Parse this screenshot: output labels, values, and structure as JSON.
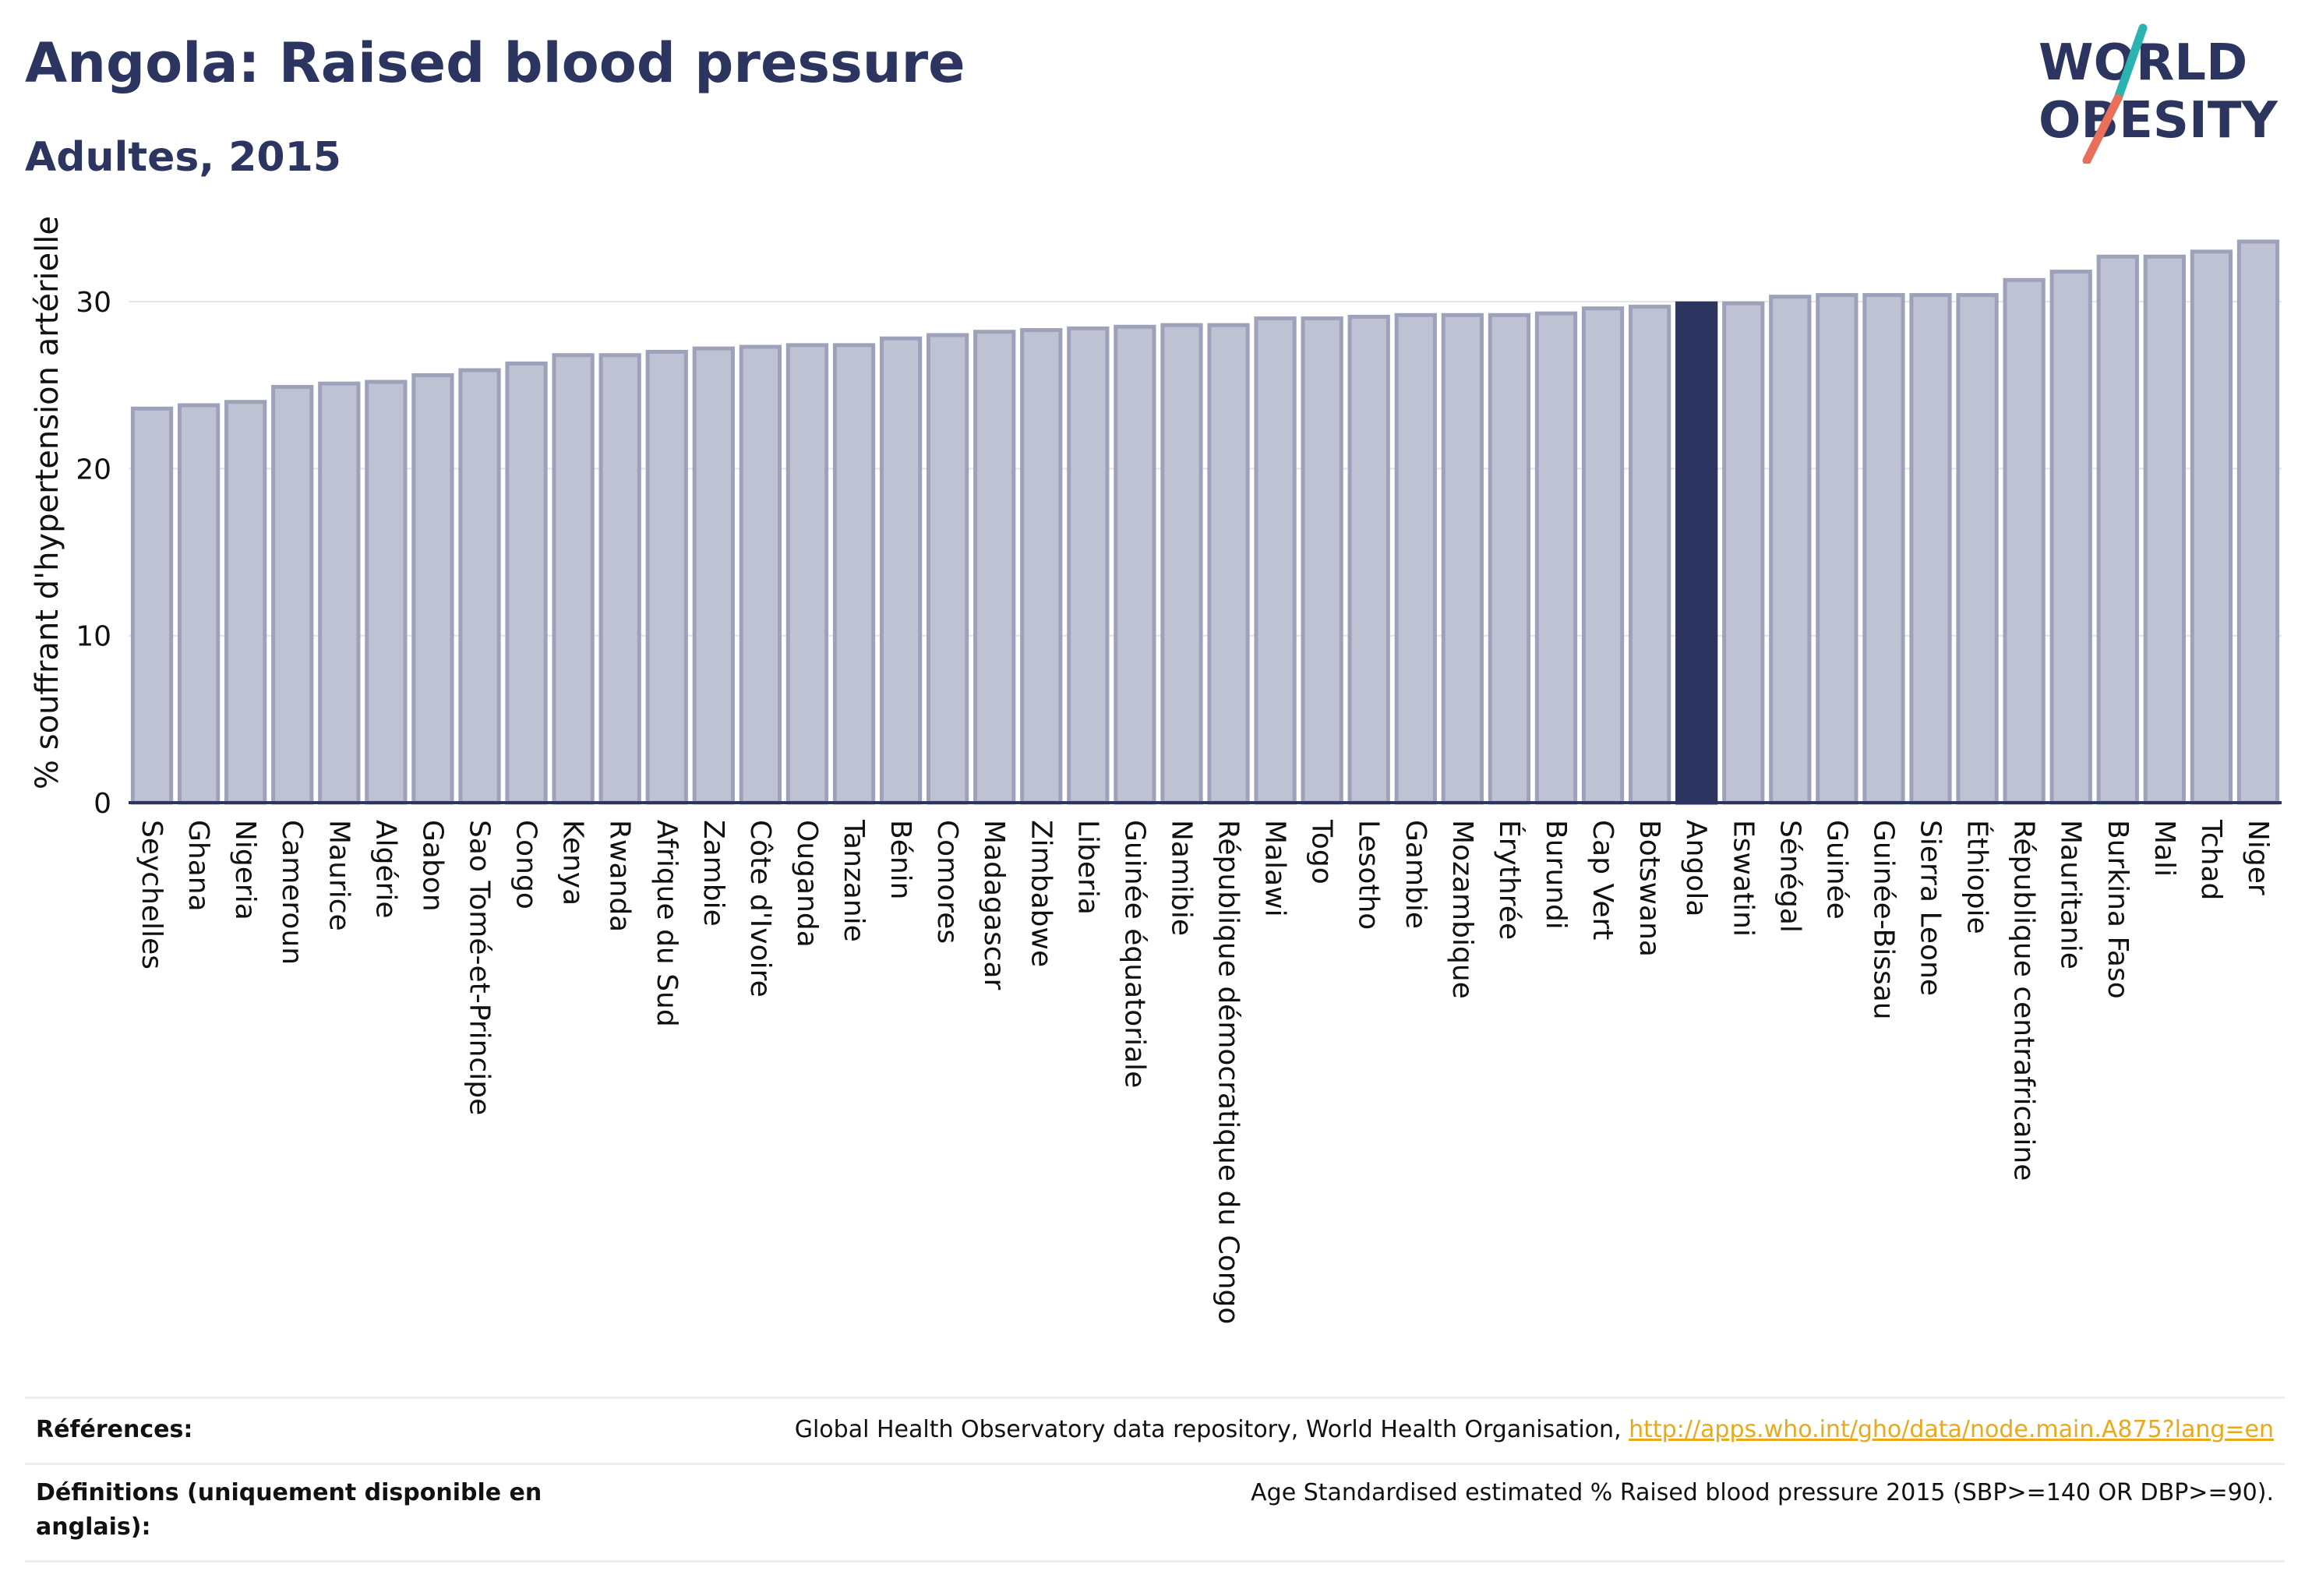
{
  "header": {
    "title": "Angola: Raised blood pressure",
    "subtitle": "Adultes, 2015"
  },
  "logo": {
    "line1": "WORLD",
    "line2": "OBESITY",
    "slash_colors": [
      "#2bb3b1",
      "#e8705a"
    ]
  },
  "chart_data": {
    "type": "bar",
    "ylabel": "% souffrant d'hypertension artérielle",
    "xlabel": "",
    "ylim": [
      0,
      35
    ],
    "yticks": [
      0,
      10,
      20,
      30
    ],
    "grid": true,
    "highlight": "Angola",
    "colors": {
      "bar": "#bfc2d2",
      "bar_edge": "#9da2ba",
      "highlight": "#2b3560"
    },
    "categories": [
      "Seychelles",
      "Ghana",
      "Nigeria",
      "Cameroun",
      "Maurice",
      "Algérie",
      "Gabon",
      "Sao Tomé-et-Principe",
      "Congo",
      "Kenya",
      "Rwanda",
      "Afrique du Sud",
      "Zambie",
      "Côte d'Ivoire",
      "Ouganda",
      "Tanzanie",
      "Bénin",
      "Comores",
      "Madagascar",
      "Zimbabwe",
      "Liberia",
      "Guinée équatoriale",
      "Namibie",
      "République démocratique du Congo",
      "Malawi",
      "Togo",
      "Lesotho",
      "Gambie",
      "Mozambique",
      "Érythrée",
      "Burundi",
      "Cap Vert",
      "Botswana",
      "Angola",
      "Eswatini",
      "Sénégal",
      "Guinée",
      "Guinée-Bissau",
      "Sierra Leone",
      "Éthiopie",
      "République centrafricaine",
      "Mauritanie",
      "Burkina Faso",
      "Mali",
      "Tchad",
      "Niger"
    ],
    "values": [
      23.6,
      23.8,
      24.0,
      24.9,
      25.1,
      25.2,
      25.6,
      25.9,
      26.3,
      26.8,
      26.8,
      27.0,
      27.2,
      27.3,
      27.4,
      27.4,
      27.8,
      28.0,
      28.2,
      28.3,
      28.4,
      28.5,
      28.6,
      28.6,
      29.0,
      29.0,
      29.1,
      29.2,
      29.2,
      29.2,
      29.3,
      29.6,
      29.7,
      29.9,
      29.9,
      30.3,
      30.4,
      30.4,
      30.4,
      30.4,
      31.3,
      31.8,
      32.7,
      32.7,
      33.0,
      33.6
    ]
  },
  "footer": {
    "references_label": "Références:",
    "references_text": "Global Health Observatory data repository, World Health Organisation, ",
    "references_link": "http://apps.who.int/gho/data/node.main.A875?lang=en",
    "definitions_label": "Définitions (uniquement disponible en anglais):",
    "definitions_text": "Age Standardised estimated % Raised blood pressure 2015 (SBP>=140 OR DBP>=90)."
  }
}
